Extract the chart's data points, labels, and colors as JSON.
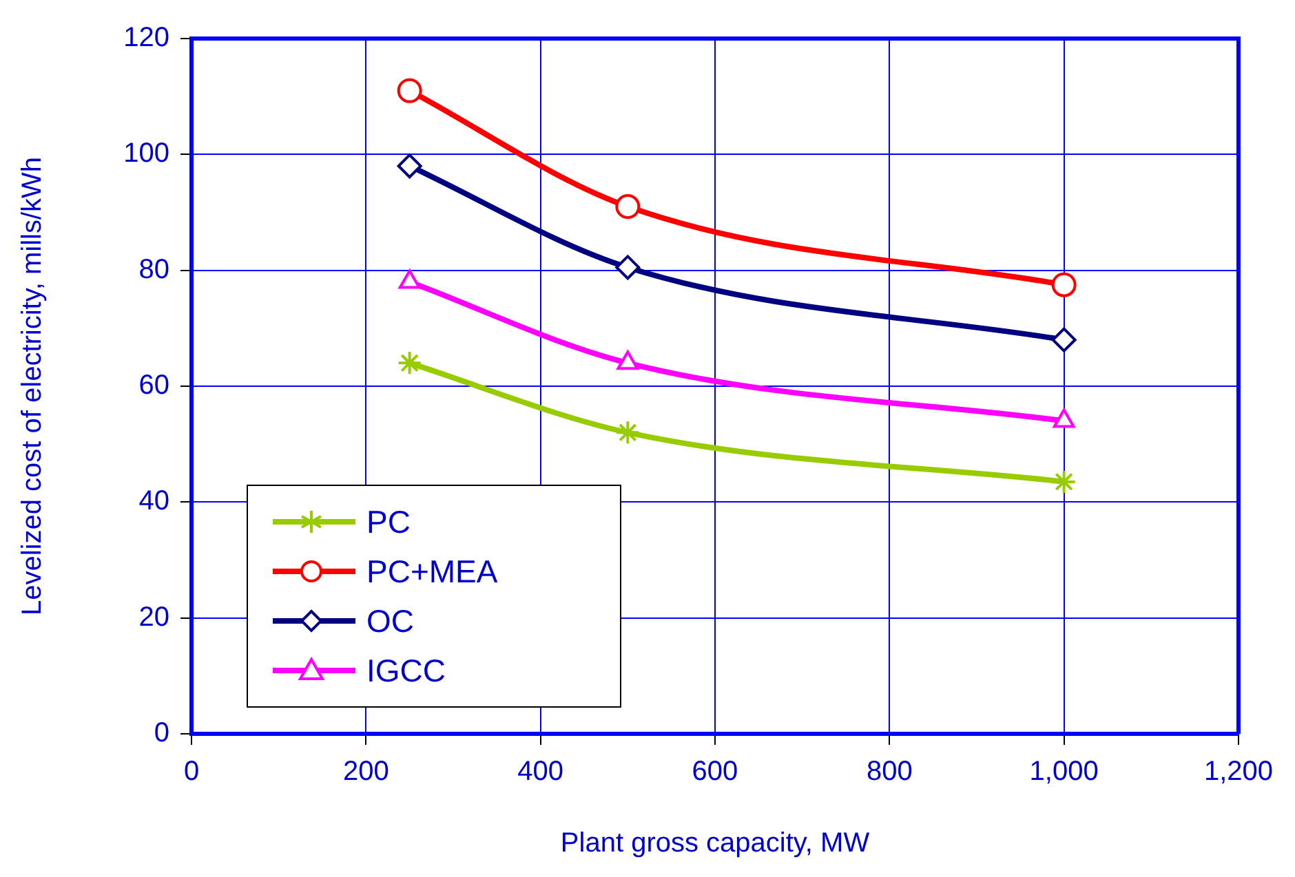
{
  "chart_data": {
    "type": "line",
    "xlabel": "Plant gross capacity, MW",
    "ylabel": "Levelized cost of electricity, mills/kWh",
    "x": [
      250,
      500,
      1000
    ],
    "series": [
      {
        "name": "PC",
        "color": "#99cc00",
        "marker": "cross",
        "values": [
          64,
          52,
          43.5
        ]
      },
      {
        "name": "PC+MEA",
        "color": "#ff0000",
        "marker": "circle",
        "values": [
          111,
          91,
          77.5
        ]
      },
      {
        "name": "OC",
        "color": "#000080",
        "marker": "diamond",
        "values": [
          98,
          80.5,
          68
        ]
      },
      {
        "name": "IGCC",
        "color": "#ff00ff",
        "marker": "triangle",
        "values": [
          78,
          64,
          54
        ]
      }
    ],
    "xlim": [
      0,
      1200
    ],
    "xticks": [
      0,
      200,
      400,
      600,
      800,
      {
        "value": 1000,
        "label": "1,000"
      },
      {
        "value": 1200,
        "label": "1,200"
      }
    ],
    "ylim": [
      0,
      120
    ],
    "yticks": [
      0,
      20,
      40,
      60,
      80,
      100,
      120
    ],
    "grid": true,
    "legend": "bottom left",
    "line_style": "solid"
  }
}
